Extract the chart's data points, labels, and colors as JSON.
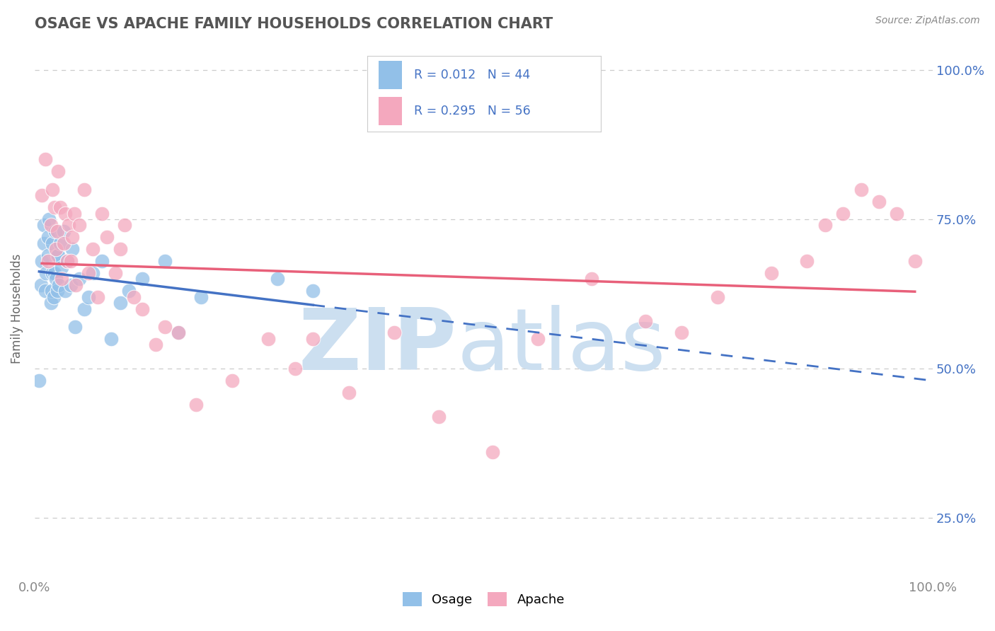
{
  "title": "OSAGE VS APACHE FAMILY HOUSEHOLDS CORRELATION CHART",
  "source": "Source: ZipAtlas.com",
  "ylabel": "Family Households",
  "xlim": [
    0.0,
    1.0
  ],
  "ylim": [
    0.15,
    1.05
  ],
  "yticks": [
    0.25,
    0.5,
    0.75,
    1.0
  ],
  "ytick_right_labels": [
    "25.0%",
    "50.0%",
    "75.0%",
    "100.0%"
  ],
  "xticks": [
    0.0,
    1.0
  ],
  "xtick_labels": [
    "0.0%",
    "100.0%"
  ],
  "osage_color": "#92c0e8",
  "apache_color": "#f4a8be",
  "osage_line_color": "#4472c4",
  "apache_line_color": "#e8607a",
  "legend_text_color": "#4472c4",
  "background_color": "#ffffff",
  "grid_color": "#cccccc",
  "title_color": "#555555",
  "osage_x": [
    0.005,
    0.007,
    0.008,
    0.01,
    0.01,
    0.012,
    0.013,
    0.015,
    0.015,
    0.016,
    0.018,
    0.019,
    0.02,
    0.02,
    0.021,
    0.022,
    0.023,
    0.024,
    0.025,
    0.025,
    0.026,
    0.027,
    0.028,
    0.03,
    0.032,
    0.034,
    0.036,
    0.04,
    0.042,
    0.045,
    0.05,
    0.055,
    0.06,
    0.065,
    0.075,
    0.085,
    0.095,
    0.105,
    0.12,
    0.145,
    0.16,
    0.185,
    0.27,
    0.31
  ],
  "osage_y": [
    0.48,
    0.64,
    0.68,
    0.71,
    0.74,
    0.63,
    0.66,
    0.69,
    0.72,
    0.75,
    0.61,
    0.63,
    0.66,
    0.71,
    0.62,
    0.66,
    0.73,
    0.65,
    0.69,
    0.63,
    0.69,
    0.64,
    0.71,
    0.67,
    0.73,
    0.63,
    0.68,
    0.64,
    0.7,
    0.57,
    0.65,
    0.6,
    0.62,
    0.66,
    0.68,
    0.55,
    0.61,
    0.63,
    0.65,
    0.68,
    0.56,
    0.62,
    0.65,
    0.63
  ],
  "apache_x": [
    0.008,
    0.012,
    0.015,
    0.018,
    0.02,
    0.022,
    0.024,
    0.025,
    0.026,
    0.028,
    0.03,
    0.032,
    0.034,
    0.036,
    0.038,
    0.04,
    0.042,
    0.044,
    0.046,
    0.05,
    0.055,
    0.06,
    0.065,
    0.07,
    0.075,
    0.08,
    0.09,
    0.095,
    0.1,
    0.11,
    0.12,
    0.135,
    0.145,
    0.16,
    0.18,
    0.22,
    0.26,
    0.29,
    0.31,
    0.35,
    0.4,
    0.45,
    0.51,
    0.56,
    0.62,
    0.68,
    0.72,
    0.76,
    0.82,
    0.86,
    0.88,
    0.9,
    0.92,
    0.94,
    0.96,
    0.98
  ],
  "apache_y": [
    0.79,
    0.85,
    0.68,
    0.74,
    0.8,
    0.77,
    0.7,
    0.73,
    0.83,
    0.77,
    0.65,
    0.71,
    0.76,
    0.68,
    0.74,
    0.68,
    0.72,
    0.76,
    0.64,
    0.74,
    0.8,
    0.66,
    0.7,
    0.62,
    0.76,
    0.72,
    0.66,
    0.7,
    0.74,
    0.62,
    0.6,
    0.54,
    0.57,
    0.56,
    0.44,
    0.48,
    0.55,
    0.5,
    0.55,
    0.46,
    0.56,
    0.42,
    0.36,
    0.55,
    0.65,
    0.58,
    0.56,
    0.62,
    0.66,
    0.68,
    0.74,
    0.76,
    0.8,
    0.78,
    0.76,
    0.68
  ]
}
